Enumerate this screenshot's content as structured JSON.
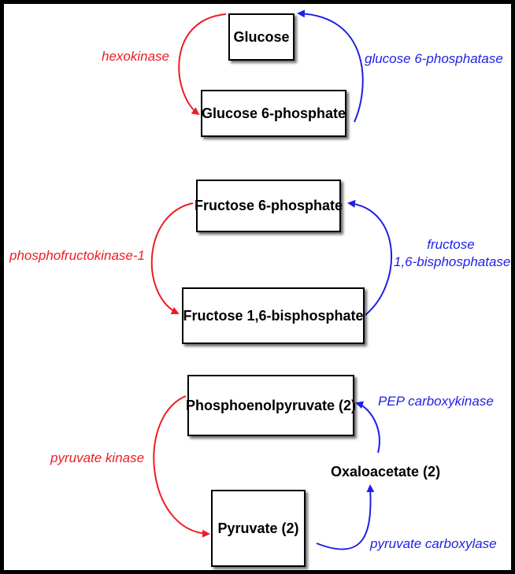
{
  "colors": {
    "glycolysis": "#ee1c24",
    "gluconeogenesis": "#1f1fe6"
  },
  "step1": {
    "substrate": "Glucose",
    "product": "Glucose 6-phosphate",
    "forward_enzyme": "hexokinase",
    "reverse_enzyme": "glucose 6-phosphatase"
  },
  "step2": {
    "substrate": "Fructose 6-phosphate",
    "product": "Fructose 1,6-bisphosphate",
    "forward_enzyme": "phosphofructokinase-1",
    "reverse_enzyme_line1": "fructose",
    "reverse_enzyme_line2": "1,6-bisphosphatase"
  },
  "step3": {
    "substrate": "Phosphoenolpyruvate (2)",
    "product": "Pyruvate (2)",
    "intermediate": "Oxaloacetate (2)",
    "forward_enzyme": "pyruvate kinase",
    "reverse_enzyme_1": "pyruvate carboxylase",
    "reverse_enzyme_2": "PEP carboxykinase"
  }
}
